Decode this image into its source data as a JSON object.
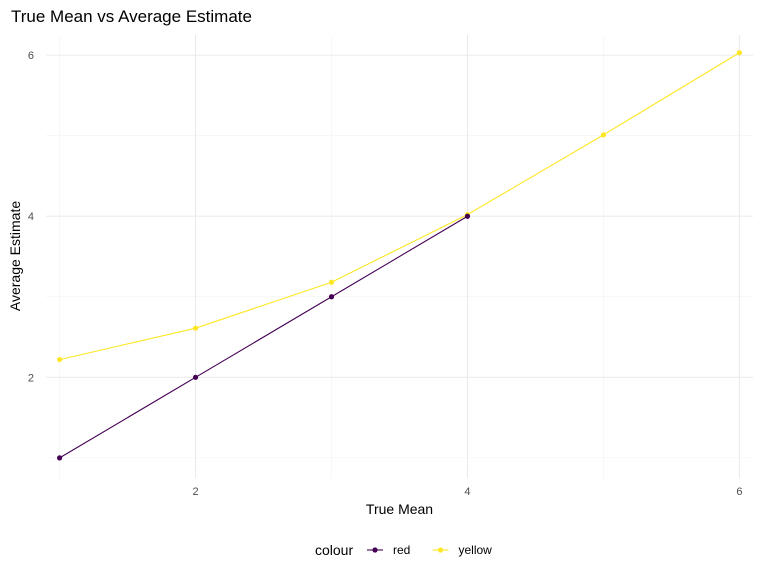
{
  "chart_data": {
    "type": "line",
    "title": "True Mean vs Average Estimate",
    "xlabel": "True Mean",
    "ylabel": "Average Estimate",
    "xlim": [
      0.9,
      6.1
    ],
    "ylim": [
      0.75,
      6.25
    ],
    "x_ticks": [
      2,
      4,
      6
    ],
    "y_ticks": [
      2,
      4,
      6
    ],
    "x_minor": [
      1,
      3,
      5
    ],
    "y_minor": [
      1,
      3,
      5
    ],
    "grid": true,
    "legend": {
      "title": "colour",
      "position": "bottom"
    },
    "series": [
      {
        "name": "red",
        "color": "#440154",
        "x": [
          1,
          2,
          3,
          4
        ],
        "y": [
          1.0,
          2.0,
          3.0,
          4.0
        ]
      },
      {
        "name": "yellow",
        "color": "#FDE725",
        "x": [
          1,
          2,
          3,
          4,
          5,
          6
        ],
        "y": [
          2.22,
          2.61,
          3.18,
          4.02,
          5.01,
          6.03
        ]
      }
    ]
  }
}
